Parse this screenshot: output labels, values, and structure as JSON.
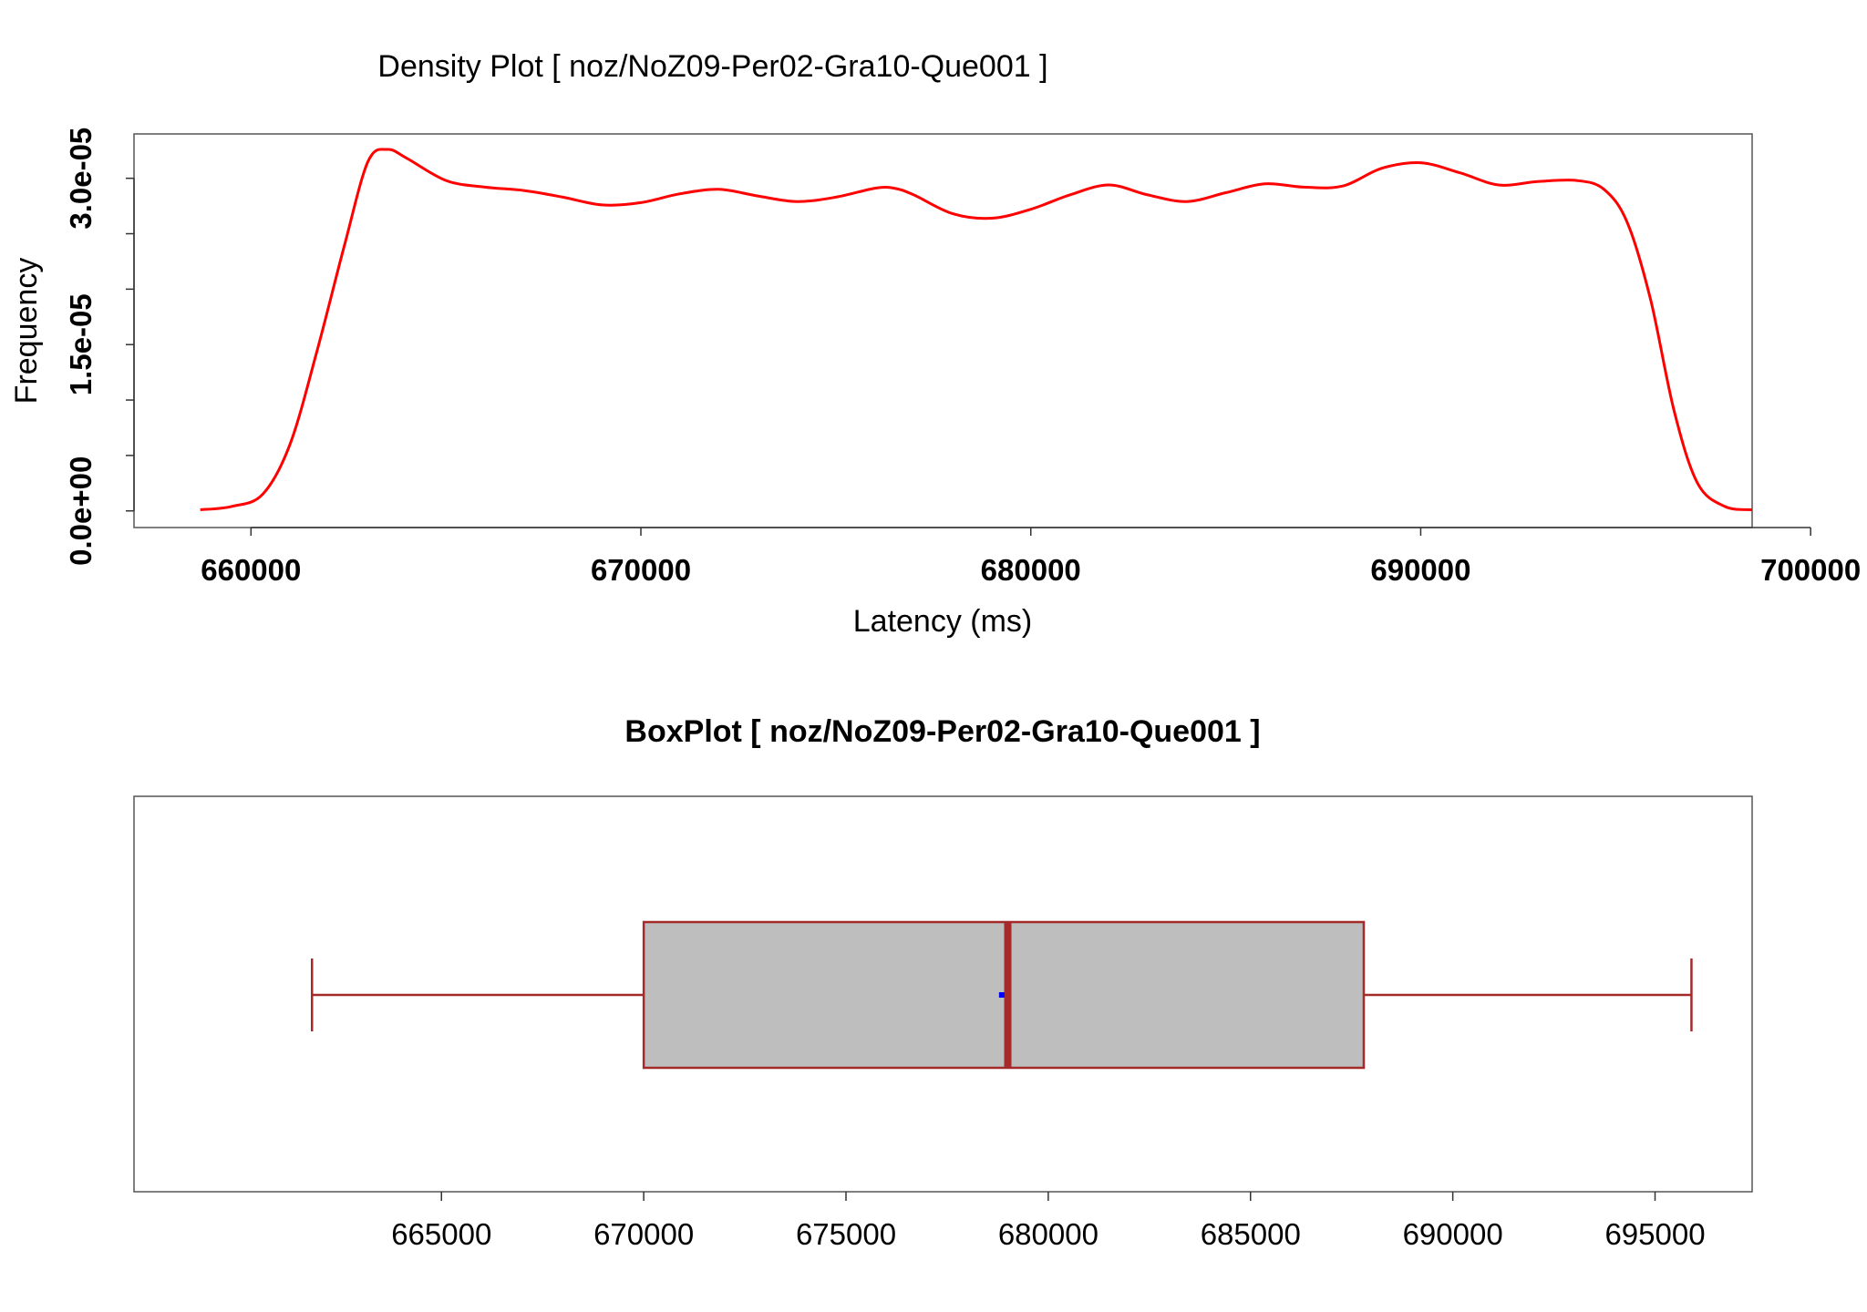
{
  "chart_data": [
    {
      "type": "line",
      "title": "Density Plot [ noz/NoZ09-Per02-Gra10-Que001 ]",
      "xlabel": "Latency (ms)",
      "ylabel": "Frequency",
      "xlim": [
        657000,
        698500
      ],
      "ylim": [
        -1.5e-06,
        3.4e-05
      ],
      "x_ticks": [
        660000,
        670000,
        680000,
        690000,
        700000
      ],
      "x_tick_labels": [
        "660000",
        "670000",
        "680000",
        "690000",
        "700000"
      ],
      "y_ticks": [
        0,
        5e-06,
        1e-05,
        1.5e-05,
        2e-05,
        2.5e-05,
        3e-05
      ],
      "y_tick_labels": [
        "0.0e+00",
        "1.5e-05",
        "3.0e-05"
      ],
      "y_labeled_ticks": [
        0,
        1.5e-05,
        3e-05
      ],
      "line_color": "#ff0000",
      "series": [
        {
          "x": [
            658700,
            659500,
            660300,
            661000,
            661700,
            662400,
            663000,
            663500,
            664000,
            665000,
            666000,
            667000,
            668000,
            669000,
            670000,
            671000,
            672000,
            673000,
            674000,
            675000,
            676000,
            676500,
            677000,
            678000,
            679000,
            680000,
            681000,
            682000,
            683000,
            684000,
            685000,
            686000,
            687000,
            688000,
            689000,
            690000,
            691000,
            692000,
            693000,
            694000,
            694700,
            695300,
            695900,
            696500,
            697100,
            697800,
            698500
          ],
          "y": [
            1e-07,
            4e-07,
            1.5e-06,
            6e-06,
            1.45e-05,
            2.4e-05,
            3.15e-05,
            3.26e-05,
            3.18e-05,
            2.98e-05,
            2.92e-05,
            2.89e-05,
            2.83e-05,
            2.76e-05,
            2.78e-05,
            2.86e-05,
            2.9e-05,
            2.84e-05,
            2.79e-05,
            2.83e-05,
            2.91e-05,
            2.91e-05,
            2.85e-05,
            2.68e-05,
            2.64e-05,
            2.72e-05,
            2.85e-05,
            2.94e-05,
            2.85e-05,
            2.79e-05,
            2.87e-05,
            2.95e-05,
            2.92e-05,
            2.93e-05,
            3.09e-05,
            3.14e-05,
            3.05e-05,
            2.94e-05,
            2.97e-05,
            2.98e-05,
            2.9e-05,
            2.6e-05,
            1.9e-05,
            9e-06,
            2.5e-06,
            4e-07,
            1e-07
          ]
        }
      ]
    },
    {
      "type": "box",
      "title": "BoxPlot [ noz/NoZ09-Per02-Gra10-Que001 ]",
      "xlim": [
        657400,
        697400
      ],
      "x_ticks": [
        665000,
        670000,
        675000,
        680000,
        685000,
        690000,
        695000
      ],
      "x_tick_labels": [
        "665000",
        "670000",
        "675000",
        "680000",
        "685000",
        "690000",
        "695000"
      ],
      "box_fill": "#bebebe",
      "box_stroke": "#a52a2a",
      "mean_color": "#0000ff",
      "whisker_low": 661800,
      "q1": 670000,
      "median": 679000,
      "q3": 687800,
      "whisker_high": 695900,
      "mean": 678850
    }
  ]
}
